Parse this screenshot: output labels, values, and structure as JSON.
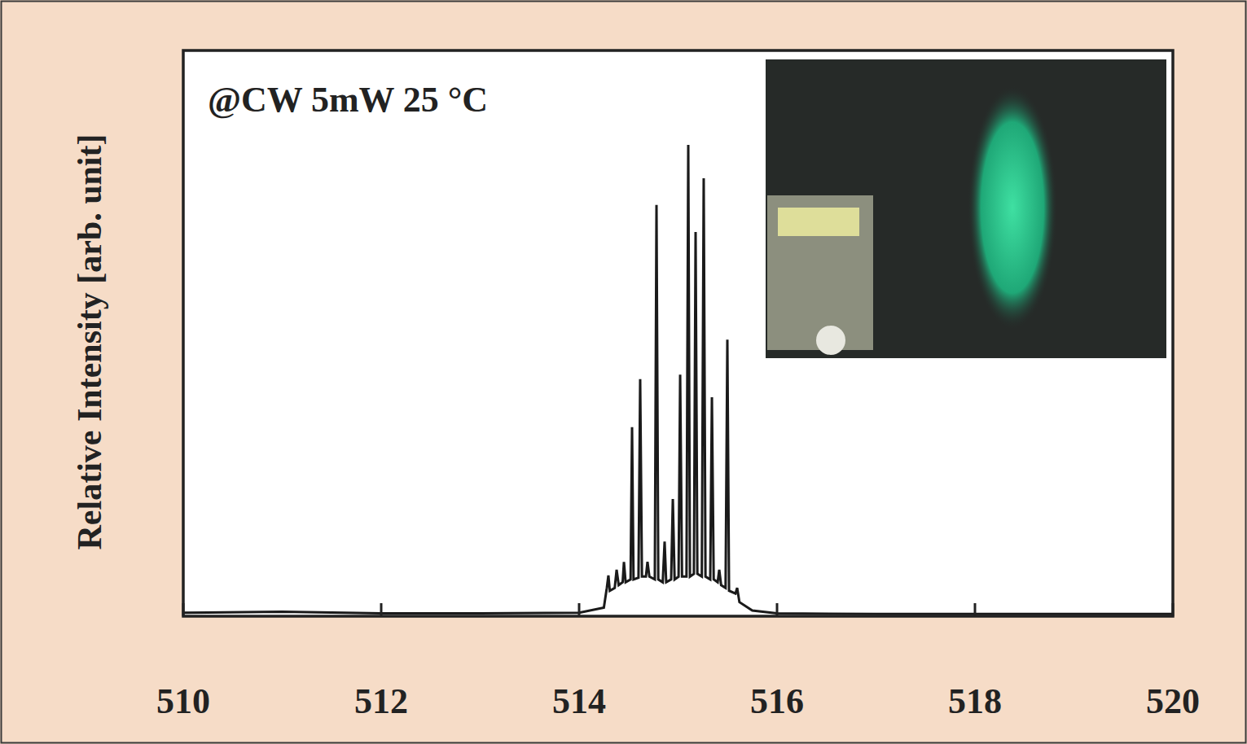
{
  "chart_data": {
    "type": "line",
    "annotation": "@CW 5mW 25 °C",
    "y_label": "Relative Intensity [arb. unit]",
    "color": "#1a1a1a",
    "xlim": [
      510,
      520
    ],
    "xticks": [
      510,
      512,
      514,
      516,
      518,
      520
    ],
    "ylim": [
      0,
      100
    ],
    "tick_labels": "x",
    "x": [
      510.0,
      511.0,
      512.0,
      513.0,
      514.0,
      514.25,
      514.28,
      514.296,
      514.31,
      514.36,
      514.379,
      514.4,
      514.44,
      514.453,
      514.47,
      514.52,
      514.535,
      514.55,
      514.6,
      514.617,
      514.635,
      514.675,
      514.691,
      514.71,
      514.765,
      514.782,
      514.8,
      514.845,
      514.864,
      514.88,
      514.93,
      514.947,
      514.965,
      515.005,
      515.021,
      515.04,
      515.085,
      515.103,
      515.12,
      515.16,
      515.177,
      515.195,
      515.24,
      515.259,
      515.277,
      515.325,
      515.342,
      515.36,
      515.4,
      515.416,
      515.435,
      515.48,
      515.498,
      515.515,
      515.58,
      515.597,
      515.62,
      515.75,
      516.0,
      517.0,
      518.0,
      519.0,
      520.0
    ],
    "values": [
      0.6,
      0.8,
      0.5,
      0.5,
      0.6,
      1.5,
      5.0,
      7.2,
      4.5,
      5.0,
      8.2,
      5.5,
      6.0,
      9.6,
      6.0,
      6.5,
      33.4,
      6.5,
      6.8,
      41.9,
      7.0,
      7.0,
      9.6,
      7.0,
      6.5,
      72.7,
      6.5,
      6.0,
      13.2,
      6.0,
      6.5,
      20.7,
      6.5,
      7.0,
      42.7,
      7.0,
      7.0,
      83.3,
      7.0,
      7.5,
      67.9,
      7.5,
      7.0,
      77.4,
      7.0,
      6.5,
      38.7,
      6.5,
      6.0,
      8.2,
      5.5,
      5.0,
      48.9,
      4.5,
      4.0,
      5.0,
      2.5,
      1.0,
      0.5,
      0.4,
      0.4,
      0.4,
      0.4
    ]
  }
}
